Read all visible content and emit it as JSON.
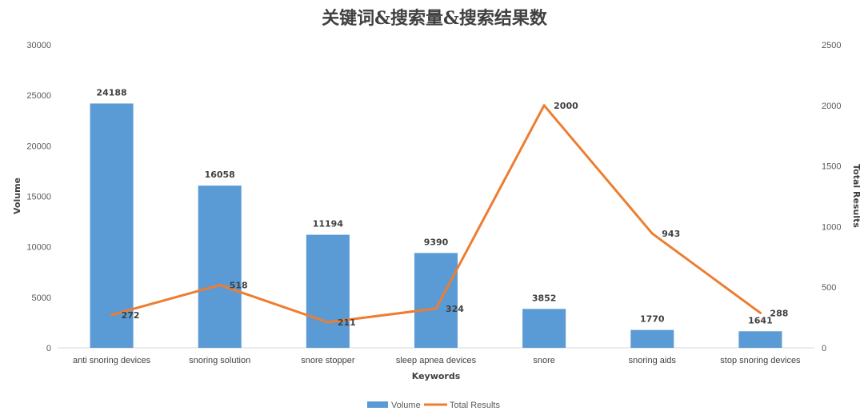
{
  "chart_data": {
    "type": "bar+line",
    "title": "关键词&搜索量&搜索结果数",
    "xlabel": "Keywords",
    "ylabel": "Volume",
    "y2label": "Total Results",
    "ylim": [
      0,
      30000
    ],
    "y2lim": [
      0,
      2500
    ],
    "yticks": [
      "0",
      "5000",
      "10000",
      "15000",
      "20000",
      "25000",
      "30000"
    ],
    "y2ticks": [
      "0",
      "500",
      "1000",
      "1500",
      "2000",
      "2500"
    ],
    "categories": [
      "anti snoring devices",
      "snoring solution",
      "snore stopper",
      "sleep apnea devices",
      "snore",
      "snoring aids",
      "stop snoring devices"
    ],
    "series": [
      {
        "name": "Volume",
        "type": "bar",
        "axis": "left",
        "color": "#5B9BD5",
        "values": [
          24188,
          16058,
          11194,
          9390,
          3852,
          1770,
          1641
        ],
        "labels": [
          "24188",
          "16058",
          "11194",
          "9390",
          "3852",
          "1770",
          "1641"
        ]
      },
      {
        "name": "Total Results",
        "type": "line",
        "axis": "right",
        "color": "#ED7D31",
        "values": [
          272,
          518,
          211,
          324,
          2000,
          943,
          288
        ],
        "labels": [
          "272",
          "518",
          "211",
          "324",
          "2000",
          "943",
          "288"
        ]
      }
    ],
    "legend_position": "bottom",
    "grid": false
  }
}
